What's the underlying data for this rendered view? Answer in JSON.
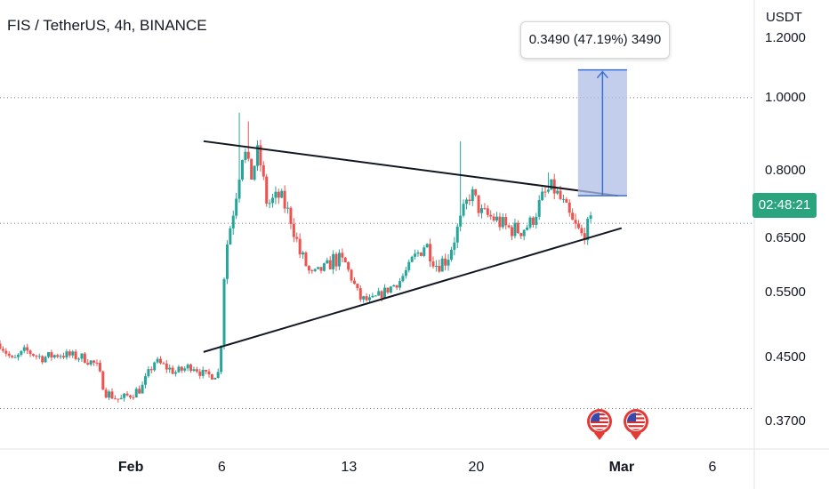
{
  "header": {
    "title": "FIS / TetherUS, 4h, BINANCE",
    "unit": "USDT"
  },
  "price_tag": "02:48:21",
  "measure_label": "0.3490 (47.19%) 3490",
  "colors": {
    "up": "#26a69a",
    "down": "#ef5350",
    "trendline": "#131722",
    "range_fill": "#aebde6",
    "range_line": "#3f6fce",
    "price_tag": "#2aa47d",
    "dotted": "#787b86"
  },
  "chart_data": {
    "type": "candlestick",
    "y_scale": "log",
    "ylim": [
      0.34,
      1.35
    ],
    "yticks": [
      "1.2000",
      "1.0000",
      "0.8000",
      "0.6500",
      "0.5500",
      "0.4500",
      "0.3700"
    ],
    "ytick_values": [
      1.2,
      1.0,
      0.8,
      0.65,
      0.55,
      0.45,
      0.37
    ],
    "xticks": [
      "Feb",
      "6",
      "13",
      "20",
      "Mar",
      "6"
    ],
    "xtick_days": [
      0,
      5,
      12,
      19,
      27,
      32
    ],
    "bold_xticks": [
      "Feb",
      "Mar"
    ],
    "x_range_days": [
      -7.2,
      34.3
    ],
    "hlines": [
      1.0,
      0.385,
      0.68
    ],
    "current_price": 0.68,
    "candle_anchors": [
      [
        -7.2,
        0.47
      ],
      [
        -6.5,
        0.445
      ],
      [
        -5.8,
        0.46
      ],
      [
        -4.9,
        0.45
      ],
      [
        -3.9,
        0.455
      ],
      [
        -2.6,
        0.45
      ],
      [
        -1.9,
        0.44
      ],
      [
        -1.4,
        0.405
      ],
      [
        -0.6,
        0.395
      ],
      [
        0.6,
        0.41
      ],
      [
        1.3,
        0.445
      ],
      [
        2.5,
        0.43
      ],
      [
        3.4,
        0.44
      ],
      [
        4.1,
        0.425
      ],
      [
        4.9,
        0.43
      ],
      [
        5.2,
        0.62
      ],
      [
        5.7,
        0.72
      ],
      [
        6.2,
        0.86
      ],
      [
        6.6,
        0.78
      ],
      [
        7.0,
        0.85
      ],
      [
        7.5,
        0.72
      ],
      [
        8.2,
        0.74
      ],
      [
        8.8,
        0.69
      ],
      [
        9.3,
        0.62
      ],
      [
        9.9,
        0.58
      ],
      [
        10.5,
        0.59
      ],
      [
        11.2,
        0.61
      ],
      [
        11.8,
        0.6
      ],
      [
        12.6,
        0.54
      ],
      [
        13.2,
        0.535
      ],
      [
        13.9,
        0.55
      ],
      [
        14.8,
        0.57
      ],
      [
        15.6,
        0.61
      ],
      [
        16.2,
        0.64
      ],
      [
        16.8,
        0.6
      ],
      [
        17.4,
        0.61
      ],
      [
        18.1,
        0.68
      ],
      [
        18.7,
        0.75
      ],
      [
        19.3,
        0.7
      ],
      [
        20.0,
        0.69
      ],
      [
        20.7,
        0.67
      ],
      [
        21.4,
        0.665
      ],
      [
        22.0,
        0.68
      ],
      [
        22.7,
        0.74
      ],
      [
        23.2,
        0.76
      ],
      [
        23.8,
        0.72
      ],
      [
        24.3,
        0.68
      ],
      [
        24.8,
        0.655
      ],
      [
        25.3,
        0.68
      ]
    ],
    "spikes": [
      [
        6.0,
        0.955
      ],
      [
        6.55,
        0.93
      ],
      [
        18.15,
        0.875
      ],
      [
        22.9,
        0.795
      ]
    ],
    "trendlines": [
      {
        "from": [
          4.0,
          0.875
        ],
        "to": [
          26.8,
          0.74
        ]
      },
      {
        "from": [
          4.0,
          0.458
        ],
        "to": [
          27.0,
          0.67
        ]
      }
    ],
    "measure": {
      "x_from": 24.6,
      "x_to": 27.3,
      "y_from": 0.74,
      "y_to": 1.089
    },
    "events": [
      {
        "day": 25.8
      },
      {
        "day": 27.8
      }
    ]
  }
}
